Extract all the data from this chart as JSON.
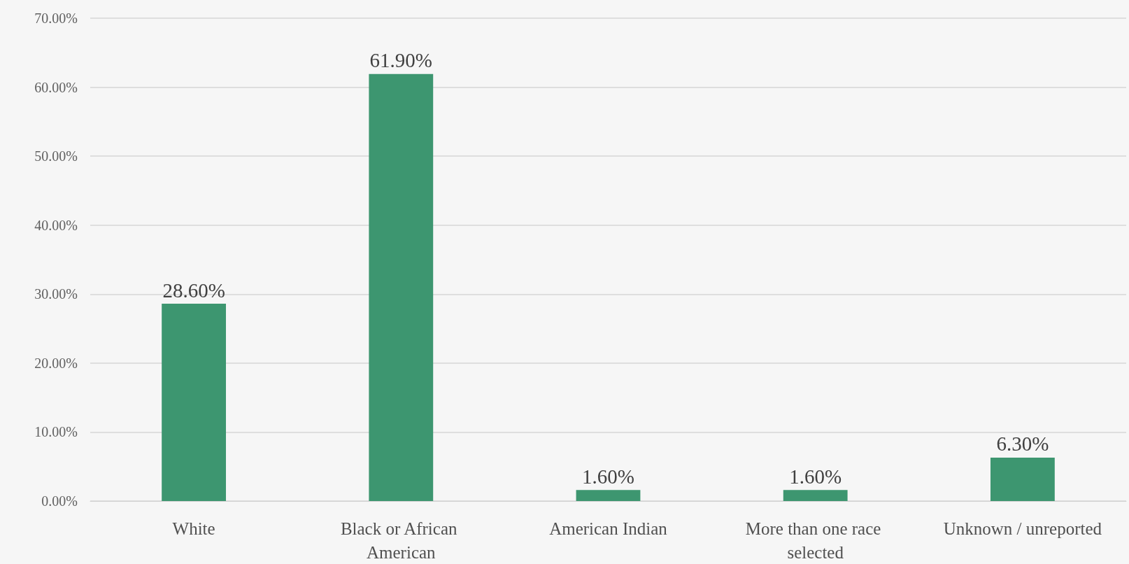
{
  "chart_data": {
    "type": "bar",
    "categories": [
      "White",
      "Black or African American",
      "American Indian",
      "More than one race selected",
      "Unknown / unreported"
    ],
    "values": [
      28.6,
      61.9,
      1.6,
      1.6,
      6.3
    ],
    "value_labels": [
      "28.60%",
      "61.90%",
      "1.60%",
      "1.60%",
      "6.30%"
    ],
    "color": "#3d9670",
    "ylim": [
      0,
      70
    ],
    "yticks": [
      {
        "value": 0,
        "label": "0.00%"
      },
      {
        "value": 10,
        "label": "10.00%"
      },
      {
        "value": 20,
        "label": "20.00%"
      },
      {
        "value": 30,
        "label": "30.00%"
      },
      {
        "value": 40,
        "label": "40.00%"
      },
      {
        "value": 50,
        "label": "50.00%"
      },
      {
        "value": 60,
        "label": "60.00%"
      },
      {
        "value": 70,
        "label": "70.00%"
      }
    ],
    "grid": true
  }
}
